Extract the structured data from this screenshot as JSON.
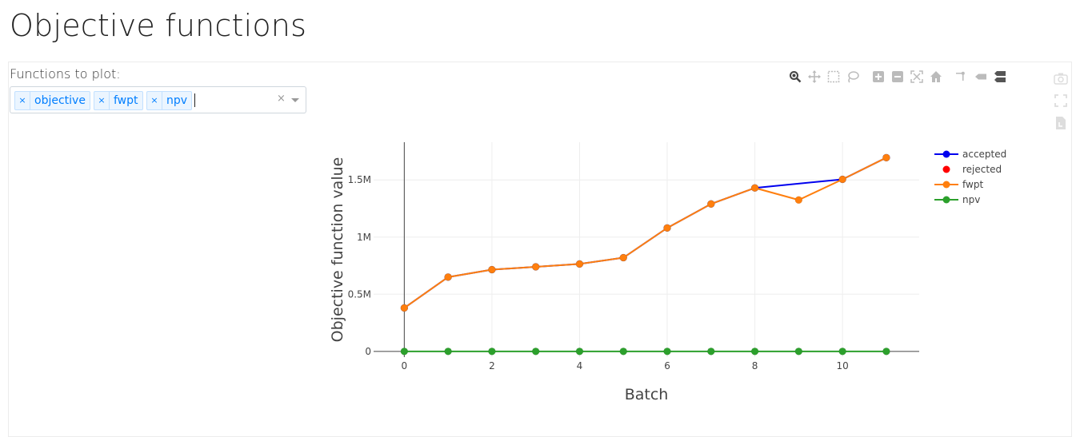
{
  "page": {
    "title": "Objective functions"
  },
  "selector": {
    "label": "Functions to plot:",
    "tags": [
      "objective",
      "fwpt",
      "npv"
    ],
    "remove_glyph": "×",
    "clear_glyph": "×"
  },
  "toolbar": {
    "icons": [
      "zoom-icon",
      "pan-icon",
      "box-select-icon",
      "lasso-select-icon",
      "zoom-in-icon",
      "zoom-out-icon",
      "autoscale-icon",
      "reset-axes-icon",
      "spike-lines-icon",
      "hover-closest-icon",
      "hover-compare-icon"
    ],
    "side_icons": [
      "camera-icon",
      "fullscreen-icon",
      "export-icon"
    ]
  },
  "colors": {
    "accepted": "#0000ee",
    "rejected": "#ff0000",
    "fwpt": "#ff7f0e",
    "npv": "#2ca02c"
  },
  "chart_data": {
    "type": "line",
    "title": "",
    "xlabel": "Batch",
    "ylabel": "Objective function value",
    "xlim": [
      -0.7,
      11.75
    ],
    "ylim": [
      -50000,
      1830000
    ],
    "x_ticks": [
      0,
      2,
      4,
      6,
      8,
      10
    ],
    "x_tick_labels": [
      "0",
      "2",
      "4",
      "6",
      "8",
      "10"
    ],
    "y_ticks": [
      0,
      500000,
      1000000,
      1500000
    ],
    "y_tick_labels": [
      "0",
      "0.5M",
      "1M",
      "1.5M"
    ],
    "grid": true,
    "legend_position": "top-right",
    "series": [
      {
        "name": "accepted",
        "mode": "lines+markers",
        "color": "#0000ee",
        "x": [
          0,
          1,
          2,
          3,
          4,
          5,
          6,
          7,
          8,
          10,
          11
        ],
        "y": [
          380000,
          650000,
          715000,
          740000,
          765000,
          820000,
          1080000,
          1290000,
          1430000,
          1505000,
          1695000
        ]
      },
      {
        "name": "rejected",
        "mode": "markers",
        "color": "#ff0000",
        "x": [],
        "y": []
      },
      {
        "name": "fwpt",
        "mode": "lines+markers",
        "color": "#ff7f0e",
        "x": [
          0,
          1,
          2,
          3,
          4,
          5,
          6,
          7,
          8,
          9,
          10,
          11
        ],
        "y": [
          380000,
          650000,
          715000,
          740000,
          765000,
          820000,
          1080000,
          1290000,
          1430000,
          1325000,
          1505000,
          1695000
        ]
      },
      {
        "name": "npv",
        "mode": "lines+markers",
        "color": "#2ca02c",
        "x": [
          0,
          1,
          2,
          3,
          4,
          5,
          6,
          7,
          8,
          9,
          10,
          11
        ],
        "y": [
          0,
          0,
          0,
          0,
          0,
          0,
          0,
          0,
          0,
          0,
          0,
          0
        ]
      }
    ]
  }
}
